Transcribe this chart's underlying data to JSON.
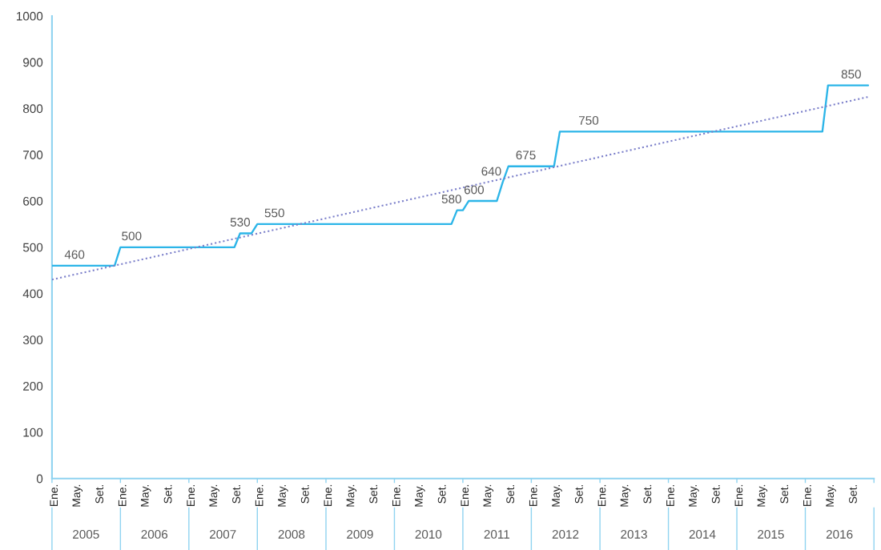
{
  "chart_data": {
    "type": "line",
    "x": [
      "2005-01",
      "2005-02",
      "2005-03",
      "2005-04",
      "2005-05",
      "2005-06",
      "2005-07",
      "2005-08",
      "2005-09",
      "2005-10",
      "2005-11",
      "2005-12",
      "2006-01",
      "2006-02",
      "2006-03",
      "2006-04",
      "2006-05",
      "2006-06",
      "2006-07",
      "2006-08",
      "2006-09",
      "2006-10",
      "2006-11",
      "2006-12",
      "2007-01",
      "2007-02",
      "2007-03",
      "2007-04",
      "2007-05",
      "2007-06",
      "2007-07",
      "2007-08",
      "2007-09",
      "2007-10",
      "2007-11",
      "2007-12",
      "2008-01",
      "2008-02",
      "2008-03",
      "2008-04",
      "2008-05",
      "2008-06",
      "2008-07",
      "2008-08",
      "2008-09",
      "2008-10",
      "2008-11",
      "2008-12",
      "2009-01",
      "2009-02",
      "2009-03",
      "2009-04",
      "2009-05",
      "2009-06",
      "2009-07",
      "2009-08",
      "2009-09",
      "2009-10",
      "2009-11",
      "2009-12",
      "2010-01",
      "2010-02",
      "2010-03",
      "2010-04",
      "2010-05",
      "2010-06",
      "2010-07",
      "2010-08",
      "2010-09",
      "2010-10",
      "2010-11",
      "2010-12",
      "2011-01",
      "2011-02",
      "2011-03",
      "2011-04",
      "2011-05",
      "2011-06",
      "2011-07",
      "2011-08",
      "2011-09",
      "2011-10",
      "2011-11",
      "2011-12",
      "2012-01",
      "2012-02",
      "2012-03",
      "2012-04",
      "2012-05",
      "2012-06",
      "2012-07",
      "2012-08",
      "2012-09",
      "2012-10",
      "2012-11",
      "2012-12",
      "2013-01",
      "2013-02",
      "2013-03",
      "2013-04",
      "2013-05",
      "2013-06",
      "2013-07",
      "2013-08",
      "2013-09",
      "2013-10",
      "2013-11",
      "2013-12",
      "2014-01",
      "2014-02",
      "2014-03",
      "2014-04",
      "2014-05",
      "2014-06",
      "2014-07",
      "2014-08",
      "2014-09",
      "2014-10",
      "2014-11",
      "2014-12",
      "2015-01",
      "2015-02",
      "2015-03",
      "2015-04",
      "2015-05",
      "2015-06",
      "2015-07",
      "2015-08",
      "2015-09",
      "2015-10",
      "2015-11",
      "2015-12",
      "2016-01",
      "2016-02",
      "2016-03",
      "2016-04",
      "2016-05",
      "2016-06",
      "2016-07",
      "2016-08",
      "2016-09",
      "2016-10",
      "2016-11",
      "2016-12"
    ],
    "series": [
      {
        "color": "#2cb5e8",
        "values": [
          460,
          460,
          460,
          460,
          460,
          460,
          460,
          460,
          460,
          460,
          460,
          460,
          500,
          500,
          500,
          500,
          500,
          500,
          500,
          500,
          500,
          500,
          500,
          500,
          500,
          500,
          500,
          500,
          500,
          500,
          500,
          500,
          500,
          530,
          530,
          530,
          550,
          550,
          550,
          550,
          550,
          550,
          550,
          550,
          550,
          550,
          550,
          550,
          550,
          550,
          550,
          550,
          550,
          550,
          550,
          550,
          550,
          550,
          550,
          550,
          550,
          550,
          550,
          550,
          550,
          550,
          550,
          550,
          550,
          550,
          550,
          580,
          580,
          600,
          600,
          600,
          600,
          600,
          600,
          640,
          675,
          675,
          675,
          675,
          675,
          675,
          675,
          675,
          675,
          750,
          750,
          750,
          750,
          750,
          750,
          750,
          750,
          750,
          750,
          750,
          750,
          750,
          750,
          750,
          750,
          750,
          750,
          750,
          750,
          750,
          750,
          750,
          750,
          750,
          750,
          750,
          750,
          750,
          750,
          750,
          750,
          750,
          750,
          750,
          750,
          750,
          750,
          750,
          750,
          750,
          750,
          750,
          750,
          750,
          750,
          750,
          850,
          850,
          850,
          850,
          850,
          850,
          850,
          850
        ],
        "value_labels": [
          null,
          null,
          null,
          null,
          null,
          null,
          "460",
          null,
          null,
          null,
          null,
          null,
          null,
          null,
          null,
          null,
          "500",
          null,
          null,
          null,
          null,
          null,
          null,
          null,
          null,
          null,
          null,
          null,
          null,
          null,
          null,
          null,
          null,
          null,
          null,
          "530",
          null,
          null,
          null,
          null,
          null,
          "550",
          null,
          null,
          null,
          null,
          null,
          null,
          null,
          null,
          null,
          null,
          null,
          null,
          null,
          null,
          null,
          null,
          null,
          null,
          null,
          null,
          null,
          null,
          null,
          null,
          null,
          null,
          null,
          null,
          null,
          null,
          "580",
          null,
          null,
          null,
          "600",
          null,
          null,
          "640",
          null,
          null,
          null,
          null,
          null,
          "675",
          null,
          null,
          null,
          null,
          null,
          null,
          null,
          null,
          null,
          null,
          "750",
          null,
          null,
          null,
          null,
          null,
          null,
          null,
          null,
          null,
          null,
          null,
          null,
          null,
          null,
          null,
          null,
          null,
          null,
          null,
          null,
          null,
          null,
          null,
          null,
          null,
          null,
          null,
          null,
          null,
          null,
          null,
          null,
          null,
          null,
          null,
          null,
          null,
          null,
          null,
          null,
          null,
          null,
          null,
          null,
          null,
          "850",
          null
        ]
      },
      {
        "type": "line",
        "x": [
          "2005-01",
          "2016-12"
        ],
        "values": [
          430,
          825
        ],
        "color": "#7b7fca",
        "line_style": "dotted"
      }
    ],
    "xlim": [
      "2005-01",
      "2017-01"
    ],
    "xticks": [
      {
        "value": "2005-01-16",
        "label": "Ene."
      },
      {
        "value": "2005-05-16",
        "label": "May."
      },
      {
        "value": "2005-09-16",
        "label": "Set."
      },
      {
        "value": "2006-01-16",
        "label": "Ene."
      },
      {
        "value": "2006-05-16",
        "label": "May."
      },
      {
        "value": "2006-09-16",
        "label": "Set."
      },
      {
        "value": "2007-01-16",
        "label": "Ene."
      },
      {
        "value": "2007-05-16",
        "label": "May."
      },
      {
        "value": "2007-09-16",
        "label": "Set."
      },
      {
        "value": "2008-01-16",
        "label": "Ene."
      },
      {
        "value": "2008-05-16",
        "label": "May."
      },
      {
        "value": "2008-09-16",
        "label": "Set."
      },
      {
        "value": "2009-01-16",
        "label": "Ene."
      },
      {
        "value": "2009-05-16",
        "label": "May."
      },
      {
        "value": "2009-09-16",
        "label": "Set."
      },
      {
        "value": "2010-01-16",
        "label": "Ene."
      },
      {
        "value": "2010-05-16",
        "label": "May."
      },
      {
        "value": "2010-09-16",
        "label": "Set."
      },
      {
        "value": "2011-01-16",
        "label": "Ene."
      },
      {
        "value": "2011-05-16",
        "label": "May."
      },
      {
        "value": "2011-09-16",
        "label": "Set."
      },
      {
        "value": "2012-01-16",
        "label": "Ene."
      },
      {
        "value": "2012-05-16",
        "label": "May."
      },
      {
        "value": "2012-09-16",
        "label": "Set."
      },
      {
        "value": "2013-01-16",
        "label": "Ene."
      },
      {
        "value": "2013-05-16",
        "label": "May."
      },
      {
        "value": "2013-09-16",
        "label": "Set."
      },
      {
        "value": "2014-01-16",
        "label": "Ene."
      },
      {
        "value": "2014-05-16",
        "label": "May."
      },
      {
        "value": "2014-09-16",
        "label": "Set."
      },
      {
        "value": "2015-01-16",
        "label": "Ene."
      },
      {
        "value": "2015-05-16",
        "label": "May."
      },
      {
        "value": "2015-09-16",
        "label": "Set."
      },
      {
        "value": "2016-01-16",
        "label": "Ene."
      },
      {
        "value": "2016-05-16",
        "label": "May."
      },
      {
        "value": "2016-09-16",
        "label": "Set."
      }
    ],
    "x2lim": [
      "2005-01",
      "2017-01"
    ],
    "x2ticks": [
      {
        "value": "2005-01",
        "label": null
      },
      {
        "value": "2005-07",
        "label": "2005"
      },
      {
        "value": "2006-01",
        "label": null
      },
      {
        "value": "2006-07",
        "label": "2006"
      },
      {
        "value": "2007-01",
        "label": null
      },
      {
        "value": "2007-07",
        "label": "2007"
      },
      {
        "value": "2008-01",
        "label": null
      },
      {
        "value": "2008-07",
        "label": "2008"
      },
      {
        "value": "2009-01",
        "label": null
      },
      {
        "value": "2009-07",
        "label": "2009"
      },
      {
        "value": "2010-01",
        "label": null
      },
      {
        "value": "2010-07",
        "label": "2010"
      },
      {
        "value": "2011-01",
        "label": null
      },
      {
        "value": "2011-07",
        "label": "2011"
      },
      {
        "value": "2012-01",
        "label": null
      },
      {
        "value": "2012-07",
        "label": "2012"
      },
      {
        "value": "2013-01",
        "label": null
      },
      {
        "value": "2013-07",
        "label": "2013"
      },
      {
        "value": "2014-01",
        "label": null
      },
      {
        "value": "2014-07",
        "label": "2014"
      },
      {
        "value": "2015-01",
        "label": null
      },
      {
        "value": "2015-07",
        "label": "2015"
      },
      {
        "value": "2016-01",
        "label": null
      },
      {
        "value": "2016-07",
        "label": "2016"
      },
      {
        "value": "2017-01",
        "label": null
      }
    ],
    "ylim": [
      0,
      1000
    ],
    "yticks": [
      0,
      100,
      200,
      300,
      400,
      500,
      600,
      700,
      800,
      900,
      1000
    ]
  }
}
